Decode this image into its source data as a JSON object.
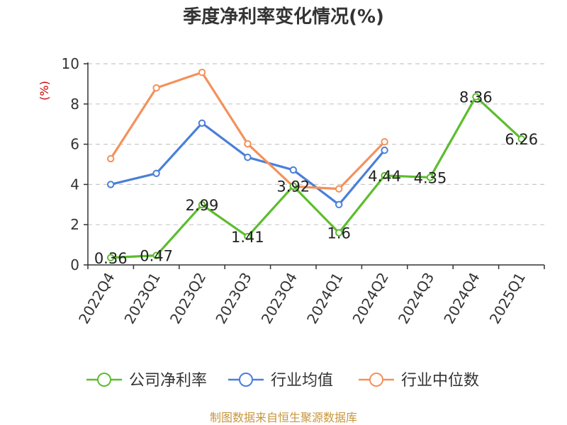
{
  "chart_data": {
    "type": "line",
    "title": "季度净利率变化情况(%)",
    "ylabel": "(%)",
    "xlabel": "",
    "ylim": [
      0,
      10
    ],
    "yticks": [
      0,
      2,
      4,
      6,
      8,
      10
    ],
    "grid": true,
    "legend_position": "bottom",
    "categories": [
      "2022Q4",
      "2023Q1",
      "2023Q2",
      "2023Q3",
      "2023Q4",
      "2024Q1",
      "2024Q2",
      "2024Q3",
      "2024Q4",
      "2025Q1"
    ],
    "series": [
      {
        "name": "公司净利率",
        "color": "#5cbd2e",
        "values": [
          0.36,
          0.47,
          2.99,
          1.41,
          3.92,
          1.6,
          4.44,
          4.35,
          8.36,
          6.26
        ],
        "labels": [
          "0.36",
          "0.47",
          "2.99",
          "1.41",
          "3.92",
          "1.6",
          "4.44",
          "4.35",
          "8.36",
          "6.26"
        ]
      },
      {
        "name": "行业均值",
        "color": "#4a7fd8",
        "values": [
          4.0,
          4.55,
          7.05,
          5.35,
          4.72,
          3.0,
          5.7,
          null,
          null,
          null
        ]
      },
      {
        "name": "行业中位数",
        "color": "#f4915a",
        "values": [
          5.28,
          8.8,
          9.57,
          6.02,
          3.9,
          3.78,
          6.12,
          null,
          null,
          null
        ]
      }
    ]
  },
  "source": "制图数据来自恒生聚源数据库"
}
